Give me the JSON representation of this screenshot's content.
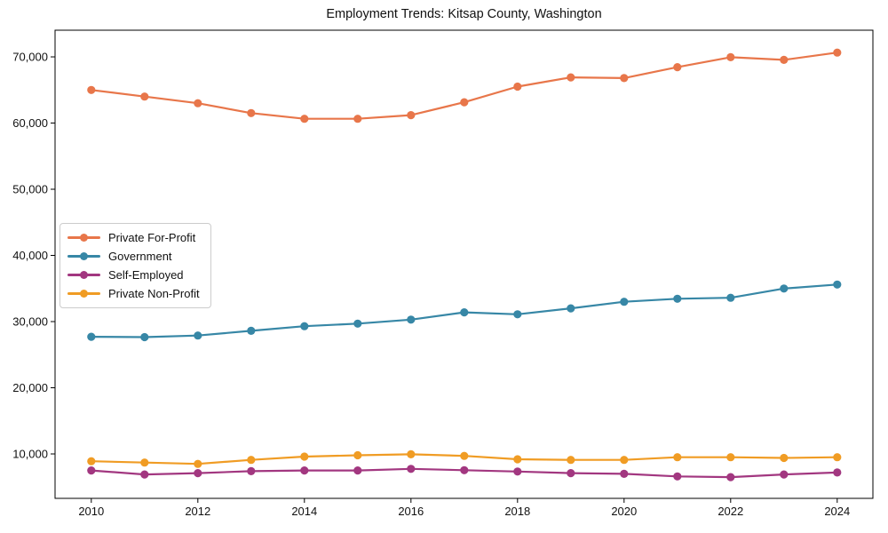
{
  "chart_data": {
    "type": "line",
    "title": "Employment Trends: Kitsap County, Washington",
    "xlabel": "",
    "ylabel": "",
    "grid": false,
    "legend_position": "center left",
    "xlim": [
      2009.32,
      2024.67
    ],
    "ylim": [
      3290,
      74030
    ],
    "x": [
      2010,
      2011,
      2012,
      2013,
      2014,
      2015,
      2016,
      2017,
      2018,
      2019,
      2020,
      2021,
      2022,
      2023,
      2024
    ],
    "x_ticks": [
      2010,
      2012,
      2014,
      2016,
      2018,
      2020,
      2022,
      2024
    ],
    "x_tick_labels": [
      "2010",
      "2012",
      "2014",
      "2016",
      "2018",
      "2020",
      "2022",
      "2024"
    ],
    "y_ticks": [
      10000,
      20000,
      30000,
      40000,
      50000,
      60000,
      70000
    ],
    "y_tick_labels": [
      "10,000",
      "20,000",
      "30,000",
      "40,000",
      "50,000",
      "60,000",
      "70,000"
    ],
    "series": [
      {
        "name": "Private For-Profit",
        "color": "#e8764a",
        "values": [
          65000,
          64000,
          63000,
          61500,
          60650,
          60650,
          61200,
          63150,
          65500,
          66900,
          66800,
          68450,
          69950,
          69550,
          70650
        ]
      },
      {
        "name": "Government",
        "color": "#3787a6",
        "values": [
          27700,
          27650,
          27900,
          28600,
          29300,
          29700,
          30300,
          31400,
          31100,
          32000,
          33000,
          33450,
          33600,
          35000,
          35600
        ]
      },
      {
        "name": "Self-Employed",
        "color": "#a23780",
        "values": [
          7500,
          6900,
          7100,
          7400,
          7500,
          7500,
          7750,
          7550,
          7350,
          7100,
          7000,
          6600,
          6500,
          6900,
          7200
        ]
      },
      {
        "name": "Private Non-Profit",
        "color": "#f09c24",
        "values": [
          8900,
          8700,
          8500,
          9100,
          9600,
          9800,
          9950,
          9700,
          9200,
          9100,
          9100,
          9500,
          9500,
          9400,
          9500
        ]
      }
    ]
  }
}
